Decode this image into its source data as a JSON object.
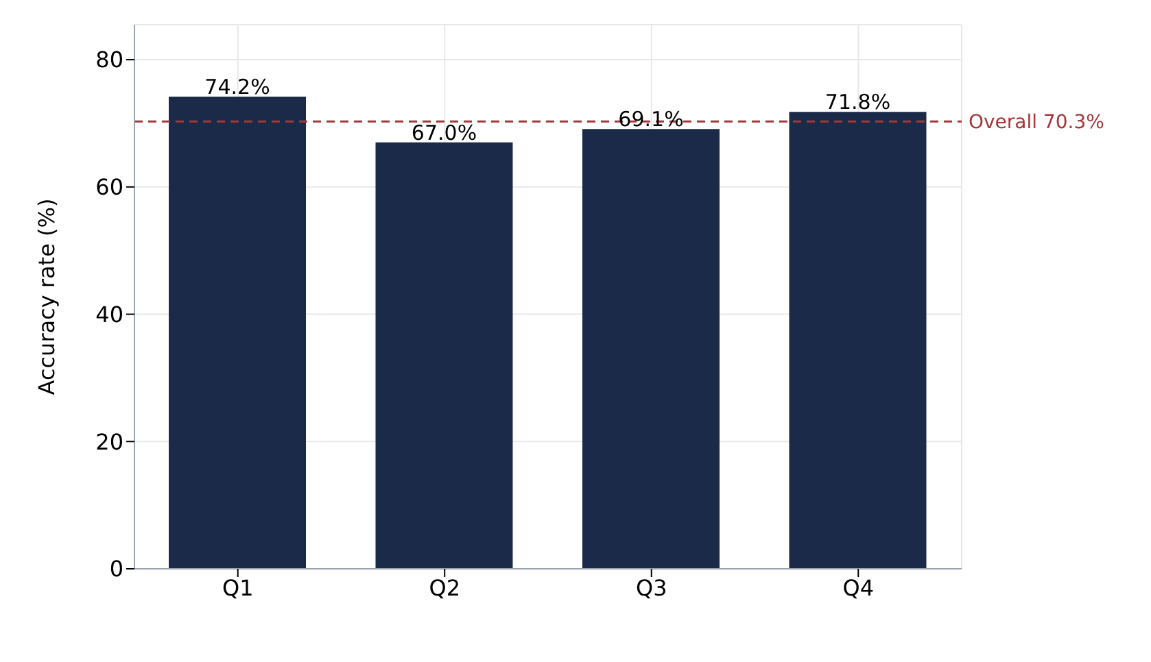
{
  "chart_data": {
    "type": "bar",
    "ylabel": "Accuracy rate (%)",
    "categories": [
      "Q1",
      "Q2",
      "Q3",
      "Q4"
    ],
    "values": [
      74.2,
      67.0,
      69.1,
      71.8
    ],
    "color": "#1b2a48",
    "value_labels": [
      "74.2%",
      "67.0%",
      "69.1%",
      "71.8%"
    ],
    "ylim": [
      0,
      85.5
    ],
    "yticks": [
      0,
      20,
      40,
      60,
      80
    ],
    "grid": true,
    "ref_lines": [
      {
        "axis": "y",
        "value": 70.3,
        "label": "Overall 70.3%",
        "color": "#a4373a",
        "line_style": "dashed"
      }
    ]
  }
}
